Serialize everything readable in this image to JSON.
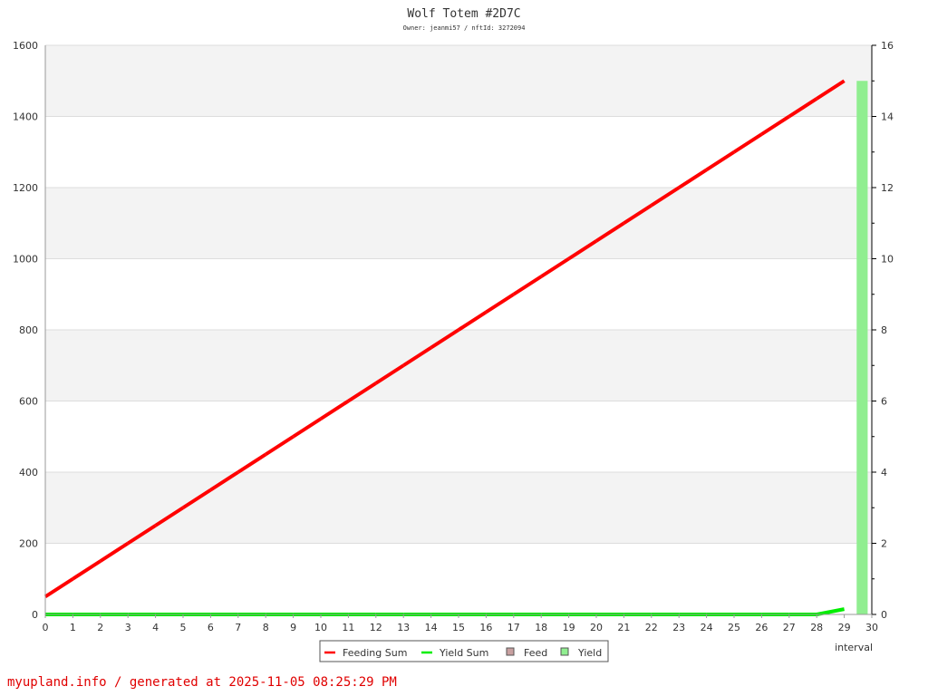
{
  "chart_data": {
    "type": "line",
    "title": "Wolf Totem #2D7C",
    "subtitle": "Owner: jeanmi57 / nftId: 3272094",
    "xlabel": "interval",
    "xlim": [
      0,
      30
    ],
    "ylim_left": [
      0,
      1600
    ],
    "ylim_right": [
      0,
      16
    ],
    "x_ticks": [
      0,
      1,
      2,
      3,
      4,
      5,
      6,
      7,
      8,
      9,
      10,
      11,
      12,
      13,
      14,
      15,
      16,
      17,
      18,
      19,
      20,
      21,
      22,
      23,
      24,
      25,
      26,
      27,
      28,
      29,
      30
    ],
    "y_ticks_left": [
      0,
      200,
      400,
      600,
      800,
      1000,
      1200,
      1400,
      1600
    ],
    "y_ticks_right": [
      0,
      2,
      4,
      6,
      8,
      10,
      12,
      14,
      16
    ],
    "grid": true,
    "legend_position": "bottom-center",
    "x": [
      0,
      1,
      2,
      3,
      4,
      5,
      6,
      7,
      8,
      9,
      10,
      11,
      12,
      13,
      14,
      15,
      16,
      17,
      18,
      19,
      20,
      21,
      22,
      23,
      24,
      25,
      26,
      27,
      28,
      29
    ],
    "series": [
      {
        "name": "Feeding Sum",
        "axis": "left",
        "kind": "line",
        "color": "#ff0000",
        "values": [
          50,
          100,
          150,
          200,
          250,
          300,
          350,
          400,
          450,
          500,
          550,
          600,
          650,
          700,
          750,
          800,
          850,
          900,
          950,
          1000,
          1050,
          1100,
          1150,
          1200,
          1250,
          1300,
          1350,
          1400,
          1450,
          1500
        ]
      },
      {
        "name": "Yield Sum",
        "axis": "left",
        "kind": "line",
        "color": "#00ee00",
        "values": [
          0,
          0,
          0,
          0,
          0,
          0,
          0,
          0,
          0,
          0,
          0,
          0,
          0,
          0,
          0,
          0,
          0,
          0,
          0,
          0,
          0,
          0,
          0,
          0,
          0,
          0,
          0,
          0,
          0,
          15
        ]
      },
      {
        "name": "Feed",
        "axis": "right",
        "kind": "bar",
        "color": "#c8a0a0",
        "values": [
          0,
          0,
          0,
          0,
          0,
          0,
          0,
          0,
          0,
          0,
          0,
          0,
          0,
          0,
          0,
          0,
          0,
          0,
          0,
          0,
          0,
          0,
          0,
          0,
          0,
          0,
          0,
          0,
          0,
          0
        ]
      },
      {
        "name": "Yield",
        "axis": "right",
        "kind": "bar",
        "color": "#90ee90",
        "values": [
          0,
          0,
          0,
          0,
          0,
          0,
          0,
          0,
          0,
          0,
          0,
          0,
          0,
          0,
          0,
          0,
          0,
          0,
          0,
          0,
          0,
          0,
          0,
          0,
          0,
          0,
          0,
          0,
          0,
          15
        ]
      }
    ]
  },
  "footer": "myupland.info / generated at 2025-11-05 08:25:29 PM"
}
